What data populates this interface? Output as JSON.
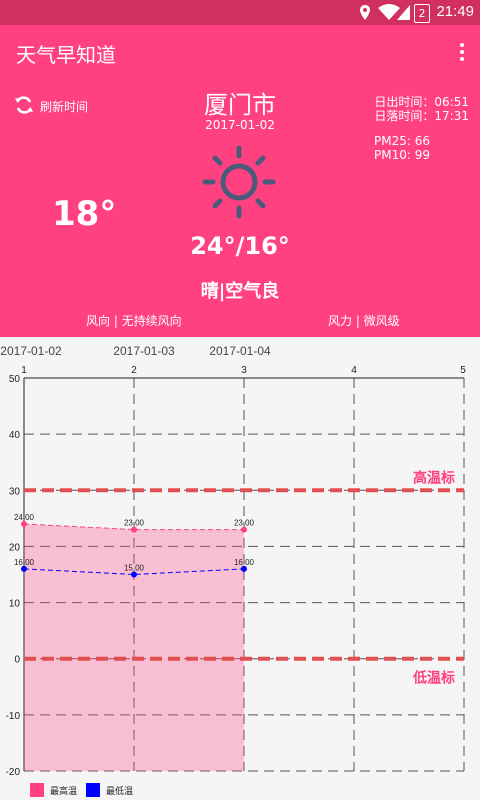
{
  "status_bar": {
    "battery": "2",
    "time": "21:49"
  },
  "app": {
    "title": "天气早知道"
  },
  "weather": {
    "refresh_label": "刷新时间",
    "city": "厦门市",
    "date": "2017-01-02",
    "sunrise": "日出时间：06:51",
    "sunset": "日落时间：17:31",
    "pm25": "PM25: 66",
    "pm10": "PM10: 99",
    "current_temp": "18°",
    "temp_range": "24°/16°",
    "condition": "晴|空气良",
    "wind_direction": "风向 | 无持续风向",
    "wind_power": "风力 | 微风级",
    "icon": "sun-icon"
  },
  "colors": {
    "primary": "#ff4081",
    "status": "#d02f5f",
    "high": "#ff4081",
    "low": "#0000ff",
    "limit": "#e05050"
  },
  "chart_data": {
    "type": "area",
    "dates": [
      "2017-01-02",
      "2017-01-03",
      "2017-01-04"
    ],
    "x": [
      1,
      2,
      3
    ],
    "x_ticks": [
      "1",
      "2",
      "3",
      "4",
      "5"
    ],
    "y_ticks": [
      "50",
      "40",
      "30",
      "20",
      "10",
      "0",
      "-10",
      "-20"
    ],
    "xlim": [
      1,
      5
    ],
    "ylim": [
      -20,
      50
    ],
    "series": [
      {
        "name": "最高温",
        "values": [
          24.0,
          23.0,
          23.0
        ],
        "labels": [
          "24.00",
          "23.00",
          "23.00"
        ],
        "color": "#ff4081"
      },
      {
        "name": "最低温",
        "values": [
          16.0,
          15.0,
          16.0
        ],
        "labels": [
          "16.00",
          "15.00",
          "16.00"
        ],
        "color": "#0000ff"
      }
    ],
    "limit_lines": [
      {
        "label": "高温标",
        "value": 30
      },
      {
        "label": "低温标",
        "value": 0
      }
    ],
    "grid": true,
    "legend": "bottom-left"
  }
}
